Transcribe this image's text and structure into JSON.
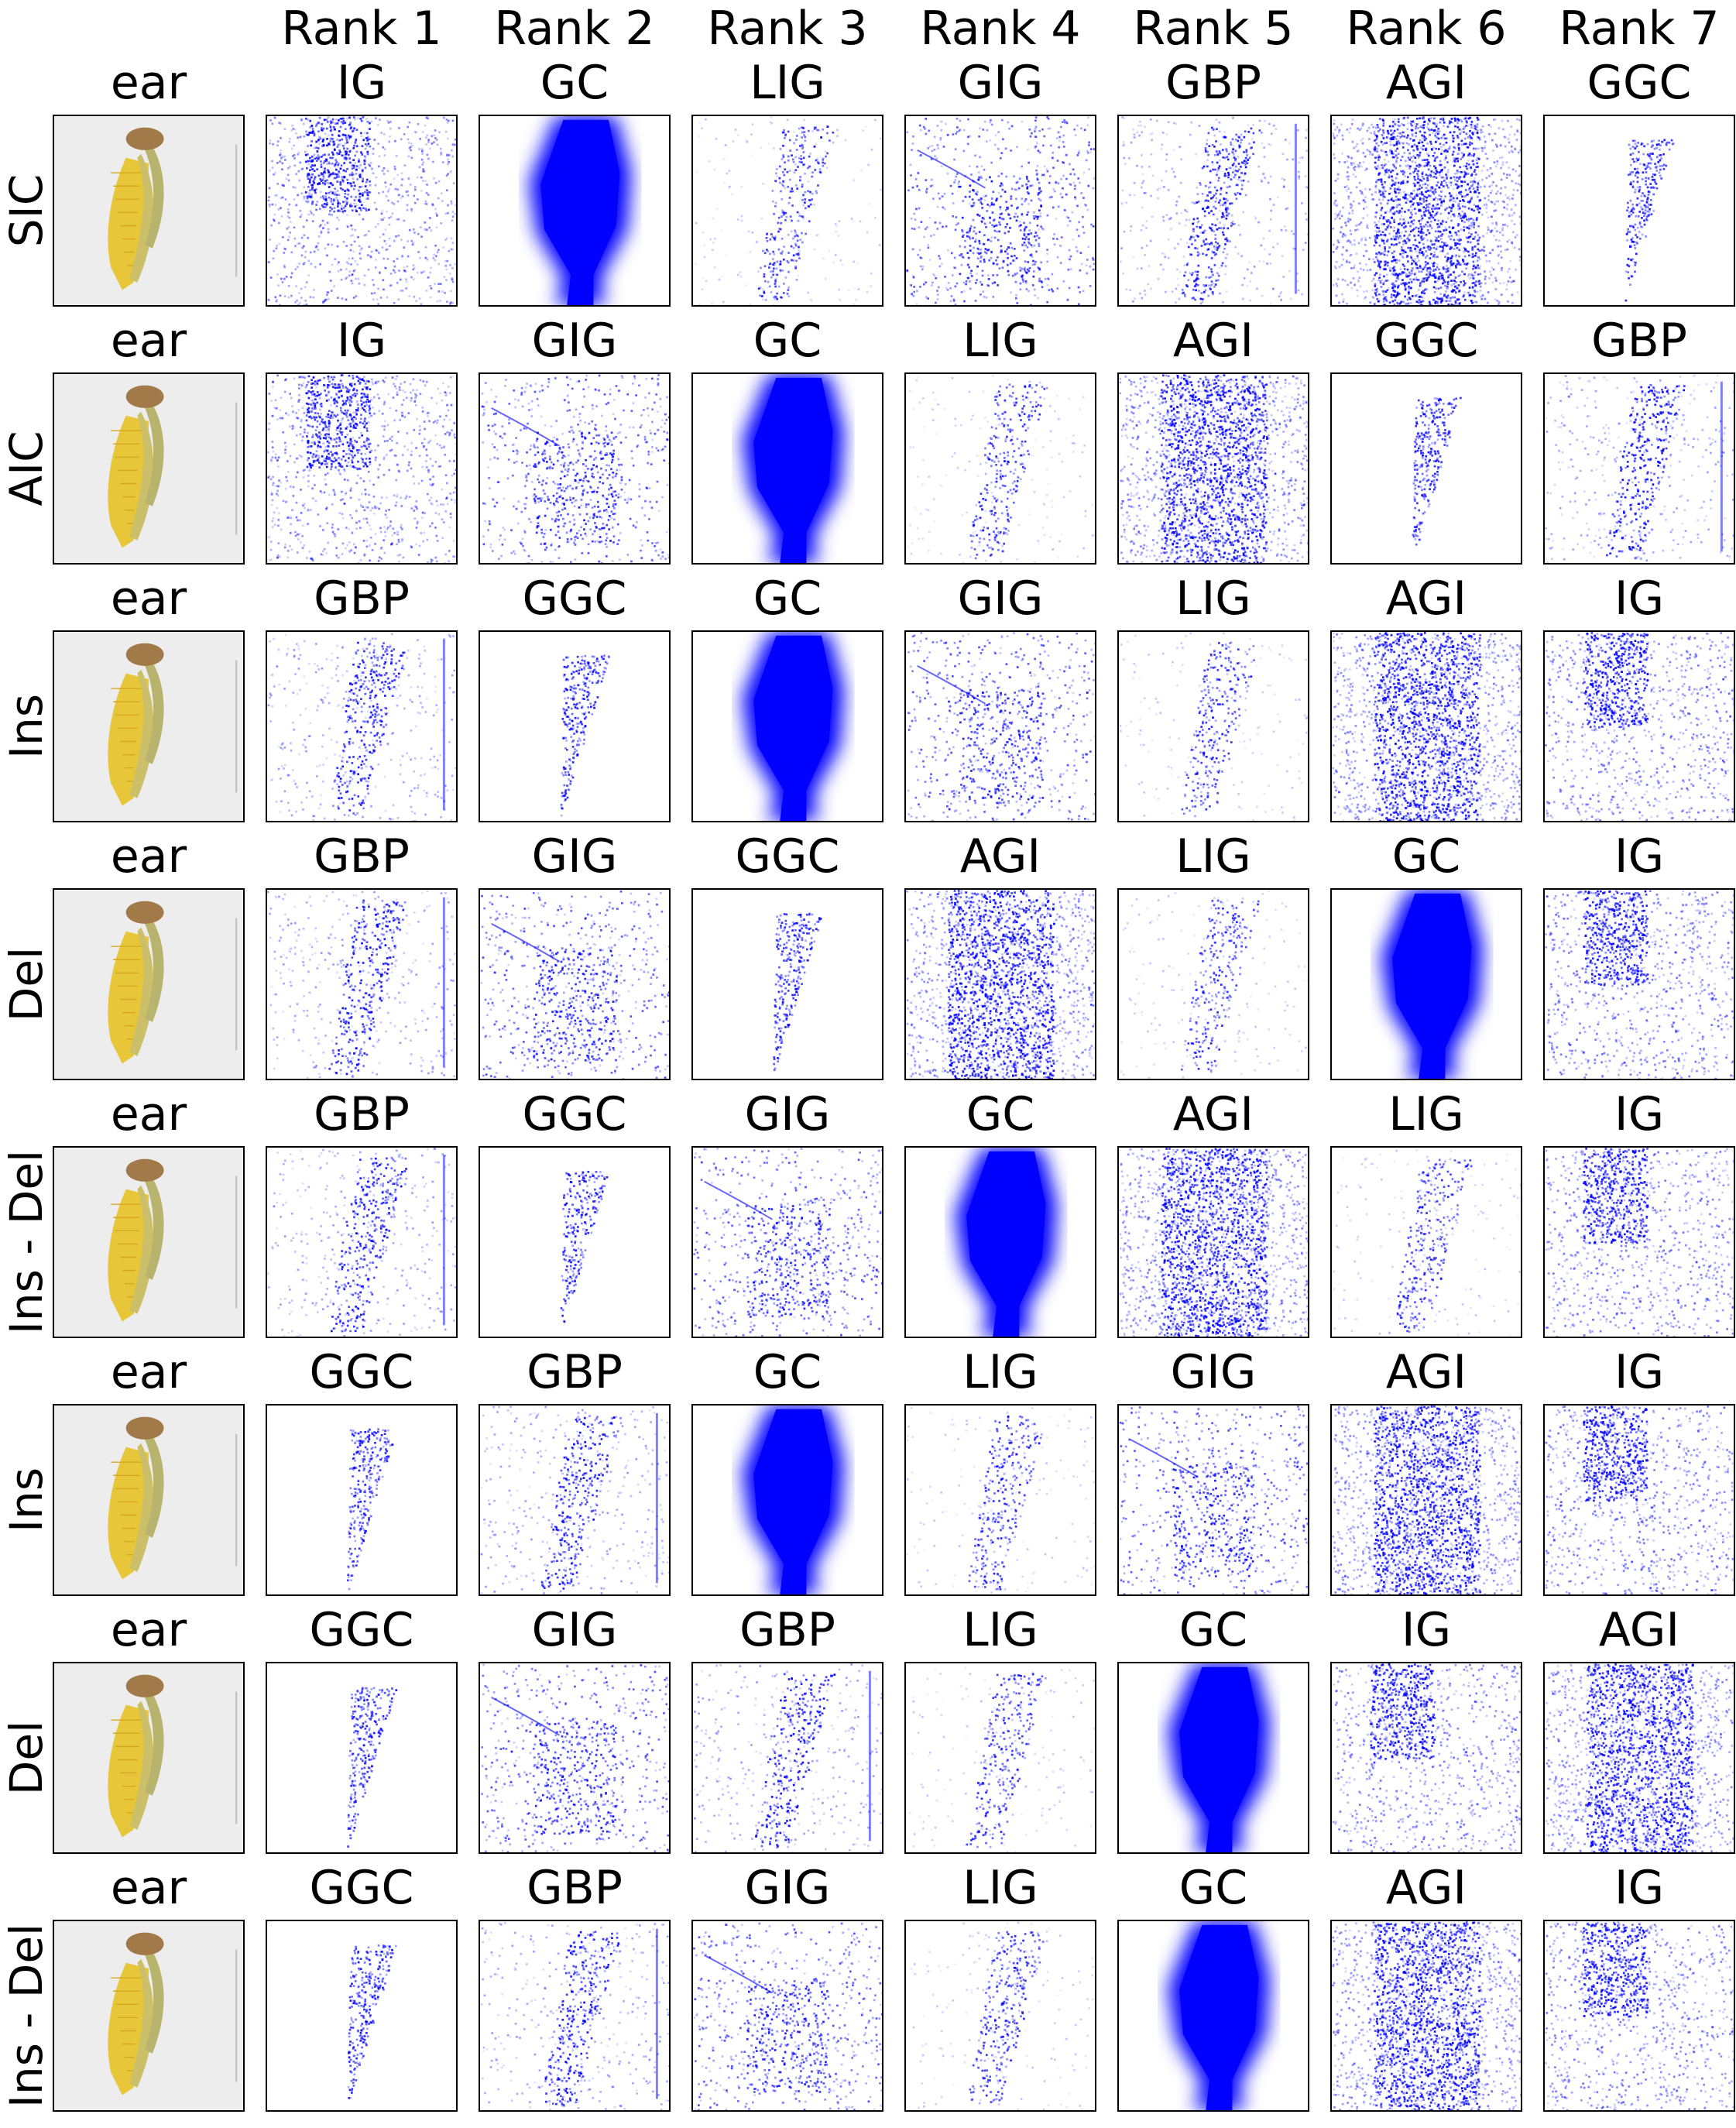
{
  "column_headers": [
    "Rank 1",
    "Rank 2",
    "Rank 3",
    "Rank 4",
    "Rank 5",
    "Rank 6",
    "Rank 7"
  ],
  "heatmap_color": "#0000ff",
  "rows": [
    {
      "metric": "SIC",
      "image_label": "ear",
      "methods": [
        "IG",
        "GC",
        "LIG",
        "GIG",
        "GBP",
        "AGI",
        "GGC"
      ]
    },
    {
      "metric": "AIC",
      "image_label": "ear",
      "methods": [
        "IG",
        "GIG",
        "GC",
        "LIG",
        "AGI",
        "GGC",
        "GBP"
      ]
    },
    {
      "metric": "Ins",
      "image_label": "ear",
      "methods": [
        "GBP",
        "GGC",
        "GC",
        "GIG",
        "LIG",
        "AGI",
        "IG"
      ]
    },
    {
      "metric": "Del",
      "image_label": "ear",
      "methods": [
        "GBP",
        "GIG",
        "GGC",
        "AGI",
        "LIG",
        "GC",
        "IG"
      ]
    },
    {
      "metric": "Ins - Del",
      "image_label": "ear",
      "methods": [
        "GBP",
        "GGC",
        "GIG",
        "GC",
        "AGI",
        "LIG",
        "IG"
      ]
    },
    {
      "metric": "Ins",
      "image_label": "ear",
      "methods": [
        "GGC",
        "GBP",
        "GC",
        "LIG",
        "GIG",
        "AGI",
        "IG"
      ]
    },
    {
      "metric": "Del",
      "image_label": "ear",
      "methods": [
        "GGC",
        "GIG",
        "GBP",
        "LIG",
        "GC",
        "IG",
        "AGI"
      ]
    },
    {
      "metric": "Ins - Del",
      "image_label": "ear",
      "methods": [
        "GGC",
        "GBP",
        "GIG",
        "LIG",
        "GC",
        "AGI",
        "IG"
      ]
    }
  ]
}
